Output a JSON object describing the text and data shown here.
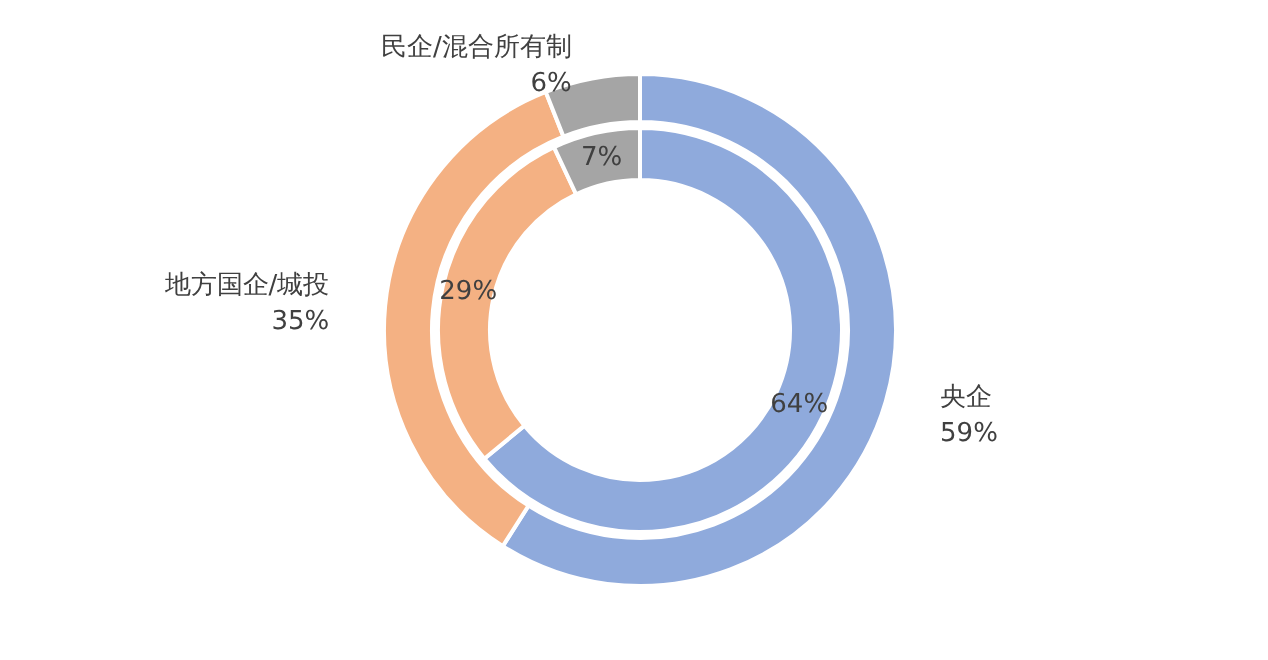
{
  "chart_data": {
    "type": "donut",
    "categories": [
      "央企",
      "地方国企/城投",
      "民企/混合所有制"
    ],
    "series": [
      {
        "colors": [
          "#8faadc",
          "#f4b183",
          "#a5a5a5"
        ],
        "values": [
          59,
          35,
          6
        ],
        "value_labels": [
          "59%",
          "35%",
          "6%"
        ]
      },
      {
        "colors": [
          "#8faadc",
          "#f4b183",
          "#a5a5a5"
        ],
        "values": [
          64,
          29,
          7
        ],
        "value_labels": [
          "64%",
          "29%",
          "7%"
        ]
      }
    ]
  }
}
